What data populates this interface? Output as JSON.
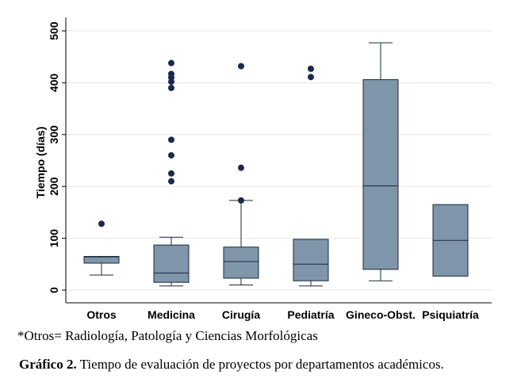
{
  "chart_data": {
    "type": "boxplot",
    "ylabel": "Tiempo (días)",
    "ylim": [
      0,
      500
    ],
    "yticks": [
      0,
      100,
      200,
      300,
      400,
      500
    ],
    "grid": true,
    "colors": {
      "box": "#7f95aa",
      "outline": "#1a2a3a",
      "outlier": "#1a2a4a",
      "grid": "#e3e6ea"
    },
    "categories": [
      "Otros",
      "Medicina",
      "Cirugía",
      "Pediatría",
      "Gineco-Obst.",
      "Psiquiatría"
    ],
    "boxes": [
      {
        "min": 29,
        "q1": 52,
        "median": 64,
        "q3": 65,
        "max": 65,
        "outliers": [
          128
        ]
      },
      {
        "min": 8,
        "q1": 15,
        "median": 33,
        "q3": 87,
        "max": 102,
        "outliers": [
          210,
          225,
          260,
          290,
          390,
          402,
          410,
          417,
          438
        ]
      },
      {
        "min": 10,
        "q1": 23,
        "median": 55,
        "q3": 83,
        "max": 173,
        "outliers": [
          173,
          236,
          432
        ]
      },
      {
        "min": 8,
        "q1": 18,
        "median": 50,
        "q3": 98,
        "max": 98,
        "outliers": [
          411,
          427
        ]
      },
      {
        "min": 18,
        "q1": 40,
        "median": 201,
        "q3": 406,
        "max": 477,
        "outliers": []
      },
      {
        "min": 27,
        "q1": 27,
        "median": 96,
        "q3": 165,
        "max": 165,
        "outliers": []
      }
    ]
  },
  "footnote": "*Otros= Radiología, Patología y Ciencias Morfológicas",
  "caption": {
    "label": "Gráfico 2.",
    "text": " Tiempo de evaluación de proyectos por departamentos académicos."
  }
}
